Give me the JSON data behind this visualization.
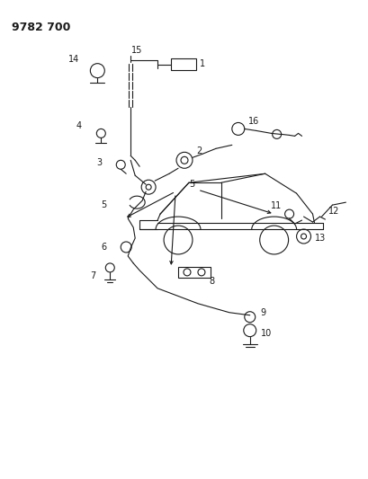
{
  "title": "9782 700",
  "bg_color": "#ffffff",
  "line_color": "#1a1a1a",
  "fig_width": 4.1,
  "fig_height": 5.33,
  "dpi": 100,
  "label_fontsize": 7.0
}
